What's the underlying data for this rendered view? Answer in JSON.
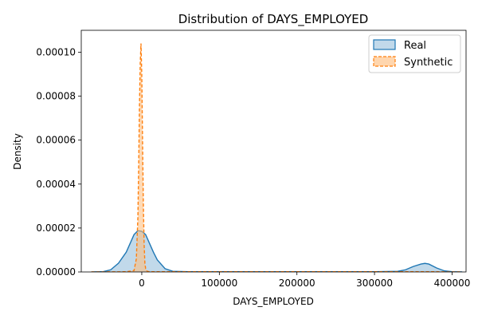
{
  "chart_data": {
    "type": "area",
    "title": "Distribution of DAYS_EMPLOYED",
    "xlabel": "DAYS_EMPLOYED",
    "ylabel": "Density",
    "xlim": [
      -78000,
      418000
    ],
    "ylim": [
      0,
      0.00011
    ],
    "xticks": [
      0,
      100000,
      200000,
      300000,
      400000
    ],
    "xtick_labels": [
      "0",
      "100000",
      "200000",
      "300000",
      "400000"
    ],
    "yticks": [
      0,
      2e-05,
      4e-05,
      6e-05,
      8e-05,
      0.0001
    ],
    "ytick_labels": [
      "0.00000",
      "0.00002",
      "0.00004",
      "0.00006",
      "0.00008",
      "0.00010"
    ],
    "grid": false,
    "legend_position": "top-right",
    "series": [
      {
        "name": "Real",
        "color": "#1f77b4",
        "fill": "#1f77b4",
        "line_style": "solid",
        "x": [
          -65000,
          -50000,
          -40000,
          -30000,
          -20000,
          -15000,
          -10000,
          -5000,
          0,
          5000,
          10000,
          15000,
          20000,
          30000,
          40000,
          60000,
          100000,
          200000,
          300000,
          330000,
          340000,
          350000,
          360000,
          365000,
          370000,
          380000,
          390000,
          400000,
          413000
        ],
        "y": [
          0.0,
          1e-07,
          1e-06,
          4e-06,
          9e-06,
          1.3e-05,
          1.7e-05,
          1.88e-05,
          1.85e-05,
          1.7e-05,
          1.3e-05,
          9e-06,
          5.5e-06,
          1.5e-06,
          3e-07,
          1e-07,
          1e-07,
          1e-07,
          1e-07,
          3e-07,
          1e-06,
          2.5e-06,
          3.6e-06,
          3.9e-06,
          3.6e-06,
          1.8e-06,
          5e-07,
          1e-07,
          0.0
        ]
      },
      {
        "name": "Synthetic",
        "color": "#ff7f0e",
        "fill": "#ffbb78",
        "line_style": "dashed",
        "x": [
          -65000,
          -20000,
          -10000,
          -7000,
          -5000,
          -4000,
          -3000,
          -2000,
          -1000,
          0,
          1000,
          2000,
          3000,
          4000,
          5000,
          7000,
          10000,
          20000,
          100000,
          200000,
          300000,
          380000,
          400000,
          413000
        ],
        "y": [
          0.0,
          1e-07,
          6e-07,
          6e-06,
          2.5e-05,
          4.8e-05,
          7.5e-05,
          9.5e-05,
          0.000104,
          9e-05,
          6e-05,
          3.2e-05,
          1.3e-05,
          4e-06,
          1.5e-06,
          3e-07,
          1e-07,
          1e-07,
          1e-07,
          1e-07,
          1e-07,
          1e-07,
          0.0,
          0.0
        ]
      }
    ]
  }
}
